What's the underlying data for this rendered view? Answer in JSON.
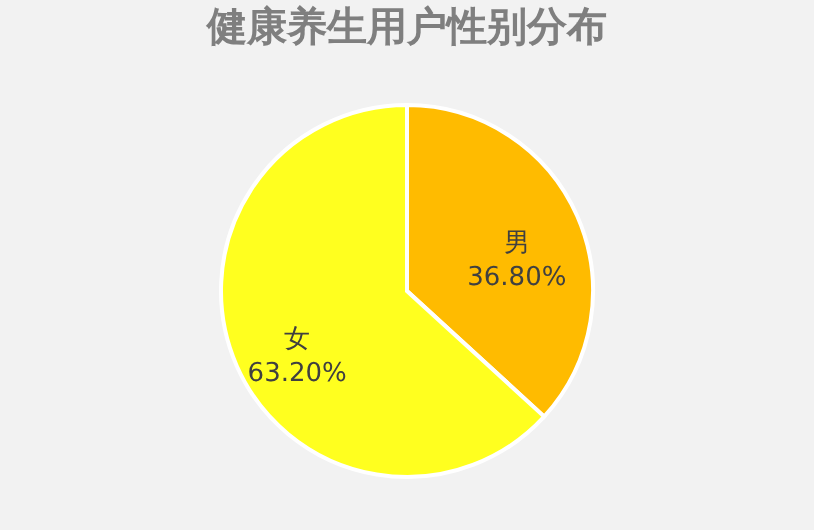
{
  "chart_data": {
    "type": "pie",
    "title": "健康养生用户性别分布",
    "categories": [
      "男",
      "女"
    ],
    "values": [
      36.8,
      63.2
    ],
    "colors": [
      "#ffbb00",
      "#ffff1f"
    ],
    "value_labels": [
      "36.80%",
      "63.20%"
    ],
    "legend": false
  }
}
